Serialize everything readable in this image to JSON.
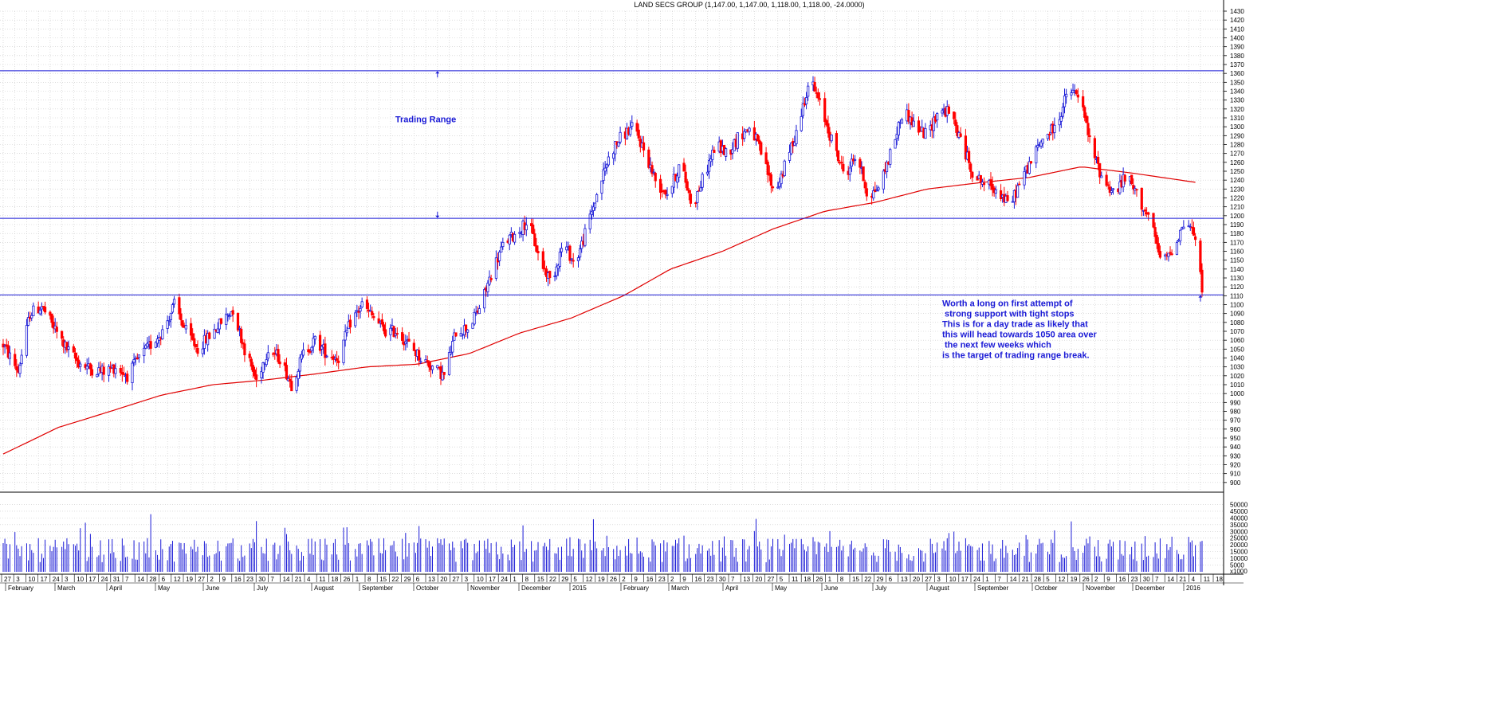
{
  "chart_data": {
    "type": "candlestick",
    "title": "LAND SECS GROUP (1,147.00, 1,147.00, 1,118.00, 1,118.00, -24.0000)",
    "price_axis": {
      "ylim": [
        890,
        1430
      ],
      "tick_labels": [
        "900",
        "910",
        "920",
        "930",
        "940",
        "950",
        "960",
        "970",
        "980",
        "990",
        "1000",
        "1010",
        "1020",
        "1030",
        "1040",
        "1050",
        "1060",
        "1070",
        "1080",
        "1090",
        "1100",
        "1110",
        "1120",
        "1130",
        "1140",
        "1150",
        "1160",
        "1170",
        "1180",
        "1190",
        "1200",
        "1210",
        "1220",
        "1230",
        "1240",
        "1250",
        "1260",
        "1270",
        "1280",
        "1290",
        "1300",
        "1310",
        "1320",
        "1330",
        "1340",
        "1350",
        "1360",
        "1370",
        "1380",
        "1390",
        "1400",
        "1410",
        "1420",
        "1430"
      ]
    },
    "volume_axis": {
      "ylim": [
        0,
        55000
      ],
      "tick_labels": [
        "x1000",
        "5000",
        "10000",
        "15000",
        "20000",
        "25000",
        "30000",
        "35000",
        "40000",
        "45000",
        "50000"
      ]
    },
    "date_ticks": [
      "27",
      "3",
      "10",
      "17",
      "24",
      "3",
      "10",
      "17",
      "24",
      "31",
      "7",
      "14",
      "28",
      "6",
      "12",
      "19",
      "27",
      "2",
      "9",
      "16",
      "23",
      "30",
      "7",
      "14",
      "21",
      "4",
      "11",
      "18",
      "26",
      "1",
      "8",
      "15",
      "22",
      "29",
      "6",
      "13",
      "20",
      "27",
      "3",
      "10",
      "17",
      "24",
      "1",
      "8",
      "15",
      "22",
      "29",
      "5",
      "12",
      "19",
      "26",
      "2",
      "9",
      "16",
      "23",
      "2",
      "9",
      "16",
      "23",
      "30",
      "7",
      "13",
      "20",
      "27",
      "5",
      "11",
      "18",
      "26",
      "1",
      "8",
      "15",
      "22",
      "29",
      "6",
      "13",
      "20",
      "27",
      "3",
      "10",
      "17",
      "24",
      "1",
      "7",
      "14",
      "21",
      "28",
      "5",
      "12",
      "19",
      "26",
      "2",
      "9",
      "16",
      "23",
      "30",
      "7",
      "14",
      "21",
      "4",
      "11",
      "18"
    ],
    "month_labels": [
      "February",
      "March",
      "April",
      "May",
      "June",
      "July",
      "August",
      "September",
      "October",
      "November",
      "December",
      "2015",
      "February",
      "March",
      "April",
      "May",
      "June",
      "July",
      "August",
      "September",
      "October",
      "November",
      "December",
      "2016"
    ],
    "horizontal_lines": [
      1363,
      1197,
      1111
    ],
    "arrows": [
      {
        "date": "2014-10-13",
        "price": 1359,
        "direction": "up"
      },
      {
        "date": "2014-10-13",
        "price": 1201,
        "direction": "down"
      },
      {
        "date": "2016-01-11",
        "price": 1107,
        "direction": "up"
      }
    ],
    "annotations": [
      {
        "text": "Trading Range",
        "date": "2014-10-06",
        "price": 1305
      },
      {
        "lines": [
          "Worth a long on first attempt of",
          " strong support with tight stops",
          "This is for a day trade as likely that",
          "this will head towards 1050 area over",
          " the next few weeks which",
          "is the target of trading range break."
        ],
        "date": "2015-08-10",
        "price": 1098
      }
    ],
    "start_date": "2014-01-27",
    "end_date": "2016-01-12",
    "price_path": [
      [
        "2014-01-27",
        1055
      ],
      [
        "2014-02-05",
        1025
      ],
      [
        "2014-02-12",
        1090
      ],
      [
        "2014-02-19",
        1098
      ],
      [
        "2014-02-26",
        1075
      ],
      [
        "2014-03-06",
        1050
      ],
      [
        "2014-03-13",
        1035
      ],
      [
        "2014-03-20",
        1028
      ],
      [
        "2014-03-28",
        1025
      ],
      [
        "2014-04-04",
        1030
      ],
      [
        "2014-04-11",
        1020
      ],
      [
        "2014-04-18",
        1040
      ],
      [
        "2014-04-25",
        1055
      ],
      [
        "2014-05-02",
        1070
      ],
      [
        "2014-05-09",
        1100
      ],
      [
        "2014-05-16",
        1070
      ],
      [
        "2014-05-23",
        1050
      ],
      [
        "2014-05-30",
        1065
      ],
      [
        "2014-06-06",
        1080
      ],
      [
        "2014-06-13",
        1095
      ],
      [
        "2014-06-20",
        1050
      ],
      [
        "2014-06-27",
        1015
      ],
      [
        "2014-07-04",
        1050
      ],
      [
        "2014-07-11",
        1040
      ],
      [
        "2014-07-18",
        1010
      ],
      [
        "2014-07-25",
        1045
      ],
      [
        "2014-08-01",
        1060
      ],
      [
        "2014-08-08",
        1045
      ],
      [
        "2014-08-15",
        1040
      ],
      [
        "2014-08-22",
        1080
      ],
      [
        "2014-08-29",
        1100
      ],
      [
        "2014-09-05",
        1085
      ],
      [
        "2014-09-12",
        1070
      ],
      [
        "2014-09-19",
        1070
      ],
      [
        "2014-09-26",
        1055
      ],
      [
        "2014-10-03",
        1040
      ],
      [
        "2014-10-10",
        1030
      ],
      [
        "2014-10-17",
        1020
      ],
      [
        "2014-10-24",
        1070
      ],
      [
        "2014-11-01",
        1075
      ],
      [
        "2014-11-08",
        1100
      ],
      [
        "2014-11-15",
        1140
      ],
      [
        "2014-11-22",
        1170
      ],
      [
        "2014-11-29",
        1180
      ],
      [
        "2014-12-06",
        1195
      ],
      [
        "2014-12-13",
        1150
      ],
      [
        "2014-12-20",
        1125
      ],
      [
        "2014-12-27",
        1170
      ],
      [
        "2015-01-03",
        1145
      ],
      [
        "2015-01-10",
        1185
      ],
      [
        "2015-01-17",
        1230
      ],
      [
        "2015-01-24",
        1270
      ],
      [
        "2015-01-31",
        1290
      ],
      [
        "2015-02-07",
        1300
      ],
      [
        "2015-02-14",
        1270
      ],
      [
        "2015-02-21",
        1235
      ],
      [
        "2015-02-28",
        1225
      ],
      [
        "2015-03-07",
        1260
      ],
      [
        "2015-03-14",
        1210
      ],
      [
        "2015-03-21",
        1245
      ],
      [
        "2015-03-28",
        1280
      ],
      [
        "2015-04-04",
        1270
      ],
      [
        "2015-04-11",
        1290
      ],
      [
        "2015-04-18",
        1300
      ],
      [
        "2015-04-25",
        1265
      ],
      [
        "2015-05-02",
        1225
      ],
      [
        "2015-05-09",
        1260
      ],
      [
        "2015-05-16",
        1300
      ],
      [
        "2015-05-23",
        1355
      ],
      [
        "2015-05-30",
        1320
      ],
      [
        "2015-06-06",
        1280
      ],
      [
        "2015-06-13",
        1245
      ],
      [
        "2015-06-20",
        1270
      ],
      [
        "2015-06-27",
        1220
      ],
      [
        "2015-07-04",
        1235
      ],
      [
        "2015-07-11",
        1275
      ],
      [
        "2015-07-18",
        1320
      ],
      [
        "2015-07-25",
        1300
      ],
      [
        "2015-08-01",
        1290
      ],
      [
        "2015-08-08",
        1320
      ],
      [
        "2015-08-15",
        1315
      ],
      [
        "2015-08-22",
        1280
      ],
      [
        "2015-08-29",
        1245
      ],
      [
        "2015-09-05",
        1235
      ],
      [
        "2015-09-12",
        1230
      ],
      [
        "2015-09-19",
        1210
      ],
      [
        "2015-09-26",
        1240
      ],
      [
        "2015-10-03",
        1265
      ],
      [
        "2015-10-10",
        1290
      ],
      [
        "2015-10-17",
        1300
      ],
      [
        "2015-10-24",
        1340
      ],
      [
        "2015-10-31",
        1335
      ],
      [
        "2015-11-07",
        1275
      ],
      [
        "2015-11-14",
        1240
      ],
      [
        "2015-11-21",
        1225
      ],
      [
        "2015-11-28",
        1245
      ],
      [
        "2015-12-05",
        1220
      ],
      [
        "2015-12-12",
        1195
      ],
      [
        "2015-12-19",
        1145
      ],
      [
        "2015-12-26",
        1165
      ],
      [
        "2016-01-02",
        1195
      ],
      [
        "2016-01-07",
        1180
      ],
      [
        "2016-01-12",
        1120
      ]
    ],
    "ma_path": [
      [
        "2014-01-27",
        932
      ],
      [
        "2014-03-01",
        962
      ],
      [
        "2014-04-01",
        980
      ],
      [
        "2014-05-01",
        998
      ],
      [
        "2014-06-01",
        1010
      ],
      [
        "2014-07-01",
        1015
      ],
      [
        "2014-08-01",
        1022
      ],
      [
        "2014-09-01",
        1030
      ],
      [
        "2014-10-01",
        1033
      ],
      [
        "2014-11-01",
        1045
      ],
      [
        "2014-12-01",
        1068
      ],
      [
        "2015-01-01",
        1085
      ],
      [
        "2015-02-01",
        1110
      ],
      [
        "2015-03-01",
        1140
      ],
      [
        "2015-04-01",
        1160
      ],
      [
        "2015-05-01",
        1185
      ],
      [
        "2015-06-01",
        1205
      ],
      [
        "2015-07-01",
        1215
      ],
      [
        "2015-08-01",
        1230
      ],
      [
        "2015-09-01",
        1237
      ],
      [
        "2015-10-01",
        1243
      ],
      [
        "2015-11-01",
        1255
      ],
      [
        "2015-12-01",
        1248
      ],
      [
        "2016-01-10",
        1237
      ]
    ],
    "colors": {
      "up": "#1a1ad6",
      "down": "#ff0000",
      "grid": "#c8c8c8",
      "ma": "#e00000",
      "volume": "#1a1ad6"
    }
  }
}
